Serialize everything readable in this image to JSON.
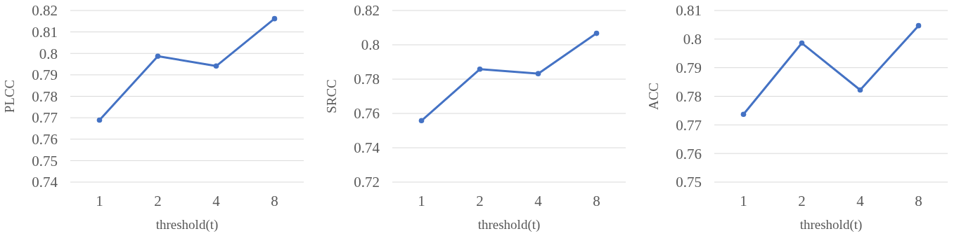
{
  "chart_data": [
    {
      "type": "line",
      "categories": [
        "1",
        "2",
        "4",
        "8"
      ],
      "series": [
        {
          "color": "#4472c4",
          "values": [
            0.7689,
            0.7987,
            0.7941,
            0.8162
          ]
        }
      ],
      "xlabel": "threshold(t)",
      "ylabel": "PLCC",
      "ylim": [
        0.74,
        0.82
      ],
      "yticks": [
        0.74,
        0.75,
        0.76,
        0.77,
        0.78,
        0.79,
        0.8,
        0.81,
        0.82
      ],
      "grid": "y",
      "marker": "circle",
      "line_style": "solid"
    },
    {
      "type": "line",
      "categories": [
        "1",
        "2",
        "4",
        "8"
      ],
      "series": [
        {
          "color": "#4472c4",
          "values": [
            0.7558,
            0.7858,
            0.7832,
            0.8067
          ]
        }
      ],
      "xlabel": "threshold(t)",
      "ylabel": "SRCC",
      "ylim": [
        0.72,
        0.82
      ],
      "yticks": [
        0.72,
        0.74,
        0.76,
        0.78,
        0.8,
        0.82
      ],
      "grid": "y",
      "marker": "circle",
      "line_style": "solid"
    },
    {
      "type": "line",
      "categories": [
        "1",
        "2",
        "4",
        "8"
      ],
      "series": [
        {
          "color": "#4472c4",
          "values": [
            0.7737,
            0.7986,
            0.7822,
            0.8047
          ]
        }
      ],
      "xlabel": "threshold(t)",
      "ylabel": "ACC",
      "ylim": [
        0.75,
        0.81
      ],
      "yticks": [
        0.75,
        0.76,
        0.77,
        0.78,
        0.79,
        0.8,
        0.81
      ],
      "grid": "y",
      "marker": "circle",
      "line_style": "solid"
    }
  ]
}
